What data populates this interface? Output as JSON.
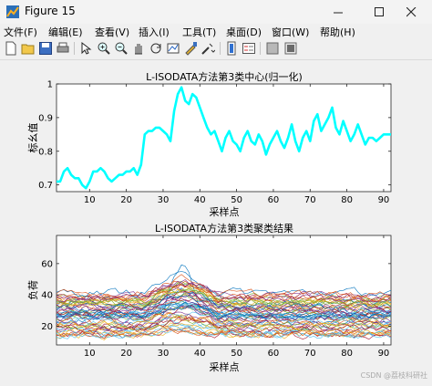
{
  "window": {
    "title": "Figure 15",
    "icon": "matlab-figure-icon"
  },
  "window_controls": [
    "minimize-icon",
    "maximize-icon",
    "close-icon"
  ],
  "menu": [
    "文件(F)",
    "编辑(E)",
    "查看(V)",
    "插入(I)",
    "工具(T)",
    "桌面(D)",
    "窗口(W)",
    "帮助(H)"
  ],
  "toolbar": [
    "new-figure-icon",
    "open-icon",
    "save-icon",
    "print-icon",
    "pointer-icon",
    "zoom-in-icon",
    "zoom-out-icon",
    "pan-icon",
    "rotate-icon",
    "data-cursor-icon",
    "brush-icon",
    "link-icon",
    "colorbar-icon",
    "legend-icon",
    "hide-plot-tools-icon",
    "show-plot-tools-icon"
  ],
  "colors": {
    "top_line": "#00ffff",
    "axes_bg": "#ffffff",
    "figure_bg": "#f0f0f0"
  },
  "watermark": "CSDN @荔枝科研社",
  "chart_data": [
    {
      "type": "line",
      "title": "L-ISODATA方法第3类中心(归一化)",
      "xlabel": "采样点",
      "ylabel": "标幺值",
      "xlim": [
        1,
        92
      ],
      "ylim": [
        0.68,
        1.0
      ],
      "xticks": [
        10,
        20,
        30,
        40,
        50,
        60,
        70,
        80,
        90
      ],
      "yticks": [
        0.7,
        0.8,
        0.9,
        1
      ],
      "grid": false,
      "series": [
        {
          "color": "#00ffff",
          "x": [
            1,
            2,
            3,
            4,
            5,
            6,
            7,
            8,
            9,
            10,
            11,
            12,
            13,
            14,
            15,
            16,
            17,
            18,
            19,
            20,
            21,
            22,
            23,
            24,
            25,
            26,
            27,
            28,
            29,
            30,
            31,
            32,
            33,
            34,
            35,
            36,
            37,
            38,
            39,
            40,
            41,
            42,
            43,
            44,
            45,
            46,
            47,
            48,
            49,
            50,
            51,
            52,
            53,
            54,
            55,
            56,
            57,
            58,
            59,
            60,
            61,
            62,
            63,
            64,
            65,
            66,
            67,
            68,
            69,
            70,
            71,
            72,
            73,
            74,
            75,
            76,
            77,
            78,
            79,
            80,
            81,
            82,
            83,
            84,
            85,
            86,
            87,
            88,
            89,
            90,
            91,
            92
          ],
          "y": [
            0.71,
            0.71,
            0.74,
            0.75,
            0.73,
            0.72,
            0.72,
            0.7,
            0.69,
            0.71,
            0.74,
            0.74,
            0.75,
            0.74,
            0.72,
            0.71,
            0.72,
            0.73,
            0.73,
            0.74,
            0.74,
            0.75,
            0.73,
            0.76,
            0.85,
            0.86,
            0.86,
            0.87,
            0.87,
            0.86,
            0.85,
            0.83,
            0.92,
            0.97,
            0.99,
            0.95,
            0.94,
            0.97,
            0.96,
            0.93,
            0.9,
            0.87,
            0.85,
            0.86,
            0.83,
            0.8,
            0.84,
            0.86,
            0.83,
            0.82,
            0.8,
            0.84,
            0.86,
            0.83,
            0.82,
            0.85,
            0.83,
            0.79,
            0.82,
            0.84,
            0.86,
            0.83,
            0.81,
            0.84,
            0.88,
            0.83,
            0.8,
            0.84,
            0.86,
            0.83,
            0.89,
            0.91,
            0.86,
            0.88,
            0.9,
            0.93,
            0.87,
            0.85,
            0.89,
            0.86,
            0.83,
            0.85,
            0.88,
            0.85,
            0.82,
            0.84,
            0.84,
            0.83,
            0.84,
            0.85,
            0.85,
            0.85
          ]
        }
      ]
    },
    {
      "type": "line",
      "title": "L-ISODATA方法第3类聚类结果",
      "xlabel": "采样点",
      "ylabel": "负荷",
      "xlim": [
        1,
        92
      ],
      "ylim": [
        8,
        78
      ],
      "xticks": [
        10,
        20,
        30,
        40,
        50,
        60,
        70,
        80,
        90
      ],
      "yticks": [
        20,
        40,
        60
      ],
      "grid": false,
      "series_count": 60,
      "note_series": "many unlabeled load curves in varying colors"
    }
  ]
}
